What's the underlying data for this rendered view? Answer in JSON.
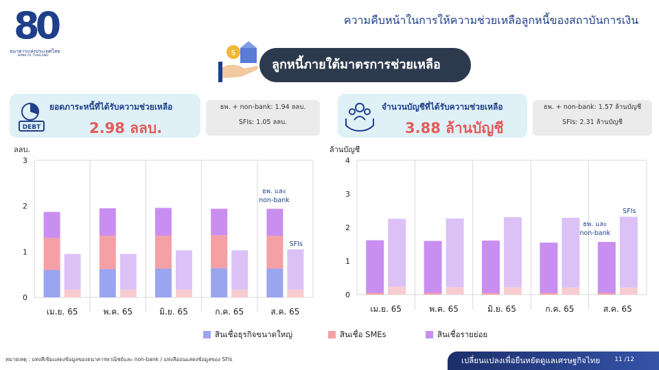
{
  "logo": {
    "number": "80",
    "bank_name_th": "ธนาคารแห่งประเทศไทย",
    "bank_name_en": "BANK OF THAILAND"
  },
  "page_title": "ความคืบหน้าในการให้ความช่วยเหลือลูกหนี้ของสถาบันการเงิน",
  "banner": {
    "title": "ลูกหนี้ภายใต้มาตรการช่วยเหลือ"
  },
  "left_kpi": {
    "label": "ยอดภาระหนี้ที่ได้รับความช่วยเหลือ",
    "value": "2.98 ลลบ.",
    "icon_text": "DEBT",
    "note_line1": "ธพ. + non-bank: 1.94 ลลบ.",
    "note_line2": "SFIs: 1.05 ลลบ."
  },
  "right_kpi": {
    "label": "จำนวนบัญชีที่ได้รับความช่วยเหลือ",
    "value": "3.88 ล้านบัญชี",
    "note_line1": "ธพ. + non-bank: 1.57 ล้านบัญชี",
    "note_line2": "SFIs: 2.31 ล้านบัญชี"
  },
  "colors": {
    "large_business": "#9aa4ef",
    "sme": "#f5a0a5",
    "retail_bank": "#c98ff0",
    "retail_sfi": "#dcc1f6",
    "sme_sfi": "#f7ccd0",
    "accent": "#1f3f8a",
    "highlight": "#e45a5a"
  },
  "chart_data": [
    {
      "type": "bar",
      "ylabel": "ลลบ.",
      "ylim": [
        0,
        3
      ],
      "yticks": [
        0,
        1,
        2,
        3
      ],
      "categories": [
        "เม.ย. 65",
        "พ.ค. 65",
        "มิ.ย. 65",
        "ก.ค. 65",
        "ส.ค. 65"
      ],
      "group_labels": {
        "bank": "ธพ. และ\nnon-bank",
        "sfi": "SFIs"
      },
      "bank_series": {
        "large_business": [
          0.6,
          0.62,
          0.63,
          0.64,
          0.63
        ],
        "sme": [
          0.7,
          0.73,
          0.72,
          0.72,
          0.72
        ],
        "retail": [
          0.57,
          0.6,
          0.61,
          0.58,
          0.59
        ]
      },
      "sfi_series": {
        "large_business": [
          0.0,
          0.0,
          0.0,
          0.0,
          0.0
        ],
        "sme": [
          0.17,
          0.17,
          0.17,
          0.17,
          0.17
        ],
        "retail": [
          0.78,
          0.78,
          0.86,
          0.86,
          0.88
        ]
      }
    },
    {
      "type": "bar",
      "ylabel": "ล้านบัญชี",
      "ylim": [
        0,
        4
      ],
      "yticks": [
        0,
        1,
        2,
        3,
        4
      ],
      "categories": [
        "เม.ย. 65",
        "พ.ค. 65",
        "มิ.ย. 65",
        "ก.ค. 65",
        "ส.ค. 65"
      ],
      "group_labels": {
        "bank": "ธพ. และ\nnon-bank",
        "sfi": "SFIs"
      },
      "bank_series": {
        "large_business": [
          0.0,
          0.0,
          0.0,
          0.0,
          0.0
        ],
        "sme": [
          0.05,
          0.05,
          0.05,
          0.05,
          0.05
        ],
        "retail": [
          1.57,
          1.55,
          1.56,
          1.5,
          1.52
        ]
      },
      "sfi_series": {
        "large_business": [
          0.0,
          0.0,
          0.0,
          0.0,
          0.0
        ],
        "sme": [
          0.24,
          0.22,
          0.22,
          0.21,
          0.21
        ],
        "retail": [
          2.02,
          2.05,
          2.09,
          2.08,
          2.11
        ]
      }
    }
  ],
  "legend": {
    "large_business": "สินเชื่อธุรกิจขนาดใหญ่",
    "sme": "สินเชื่อ SMEs",
    "retail": "สินเชื่อรายย่อย"
  },
  "footnote": "หมายเหตุ : แท่งสีเข้มแสดงข้อมูลของธนาคารพาณิชย์และ non-bank / แท่งสีอ่อนแสดงข้อมูลของ SFIs",
  "footer": {
    "slogan": "เปลี่ยนแปลงเพื่อยืนหยัดดูแลเศรษฐกิจไทย",
    "page": "11 /12"
  }
}
